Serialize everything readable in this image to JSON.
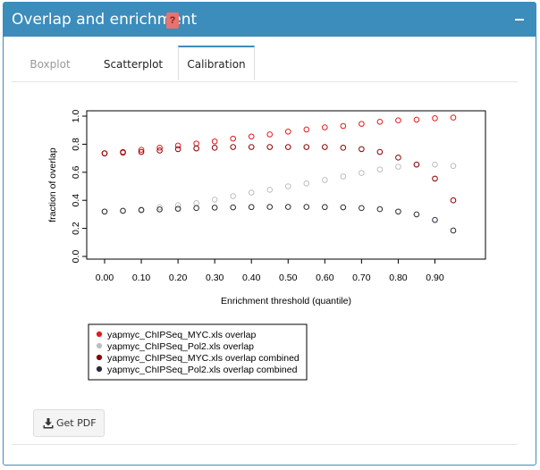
{
  "header": {
    "title": "Overlap and enrichment",
    "help_label": "?",
    "colors": {
      "bar": "#3c8dbc",
      "help": "#e8726d"
    }
  },
  "tabs": [
    {
      "label": "Boxplot",
      "active": false
    },
    {
      "label": "Scatterplot",
      "active": false
    },
    {
      "label": "Calibration",
      "active": true
    }
  ],
  "pdf_button": {
    "label": "Get PDF",
    "icon": "download-icon"
  },
  "chart_data": {
    "type": "scatter",
    "title": "",
    "xlabel": "Enrichment threshold (quantile)",
    "ylabel": "fraction of overlap",
    "xlim": [
      0,
      0.95
    ],
    "ylim": [
      0,
      1
    ],
    "x_ticks": [
      "0.00",
      "0.10",
      "0.20",
      "0.30",
      "0.40",
      "0.50",
      "0.60",
      "0.70",
      "0.80",
      "0.90"
    ],
    "y_ticks": [
      "0.0",
      "0.2",
      "0.4",
      "0.6",
      "0.8",
      "1.0"
    ],
    "grid": false,
    "legend_position": "bottom-left",
    "x": [
      0.0,
      0.05,
      0.1,
      0.15,
      0.2,
      0.25,
      0.3,
      0.35,
      0.4,
      0.45,
      0.5,
      0.55,
      0.6,
      0.65,
      0.7,
      0.75,
      0.8,
      0.85,
      0.9,
      0.95
    ],
    "series": [
      {
        "name": "yapmyc_ChIPSeq_MYC.xls overlap",
        "color": "#e41a1c",
        "values": [
          0.735,
          0.745,
          0.76,
          0.775,
          0.79,
          0.805,
          0.82,
          0.84,
          0.855,
          0.87,
          0.89,
          0.905,
          0.92,
          0.93,
          0.945,
          0.96,
          0.97,
          0.975,
          0.985,
          0.99
        ]
      },
      {
        "name": "yapmyc_ChIPSeq_Pol2.xls overlap",
        "color": "#bdbdbd",
        "values": [
          0.32,
          0.325,
          0.335,
          0.35,
          0.365,
          0.38,
          0.405,
          0.43,
          0.455,
          0.475,
          0.5,
          0.52,
          0.545,
          0.57,
          0.595,
          0.62,
          0.64,
          0.655,
          0.655,
          0.645
        ]
      },
      {
        "name": "yapmyc_ChIPSeq_MYC.xls overlap combined",
        "color": "#8b0000",
        "values": [
          0.735,
          0.74,
          0.745,
          0.755,
          0.765,
          0.77,
          0.775,
          0.78,
          0.78,
          0.78,
          0.78,
          0.78,
          0.78,
          0.775,
          0.765,
          0.745,
          0.705,
          0.655,
          0.555,
          0.4
        ]
      },
      {
        "name": "yapmyc_ChIPSeq_Pol2.xls overlap combined",
        "color": "#2b2b3a",
        "values": [
          0.32,
          0.325,
          0.33,
          0.335,
          0.34,
          0.345,
          0.348,
          0.35,
          0.352,
          0.353,
          0.353,
          0.353,
          0.352,
          0.35,
          0.345,
          0.337,
          0.32,
          0.3,
          0.26,
          0.185
        ]
      }
    ]
  }
}
